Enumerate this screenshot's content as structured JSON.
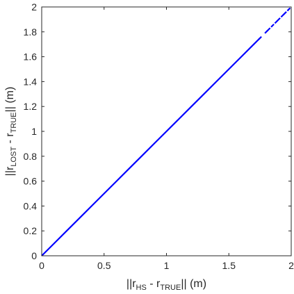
{
  "chart_data": {
    "type": "scatter",
    "xlabel": {
      "pre": "||r",
      "sub1": "HS",
      "mid": " - r",
      "sub2": "TRUE",
      "post": "|| (m)"
    },
    "ylabel": {
      "pre": "||r",
      "sub1": "LOST",
      "mid": " - r",
      "sub2": "TRUE",
      "post": "|| (m)"
    },
    "xlim": [
      0,
      2
    ],
    "ylim": [
      0,
      2
    ],
    "xticks": [
      0,
      0.5,
      1,
      1.5,
      2
    ],
    "xtick_labels": [
      "0",
      "0.5",
      "1",
      "1.5",
      "2"
    ],
    "yticks": [
      0,
      0.2,
      0.4,
      0.6,
      0.8,
      1,
      1.2,
      1.4,
      1.6,
      1.8,
      2
    ],
    "ytick_labels": [
      "0",
      "0.2",
      "0.4",
      "0.6",
      "0.8",
      "1",
      "1.2",
      "1.4",
      "1.6",
      "1.8",
      "2"
    ],
    "grid": false,
    "series": [
      {
        "color": "#0000ff",
        "x": [
          0,
          0.1,
          0.2,
          0.3,
          0.4,
          0.5,
          0.6,
          0.7,
          0.8,
          0.9,
          1.0,
          1.1,
          1.2,
          1.3,
          1.4,
          1.5,
          1.6,
          1.7,
          1.75,
          1.8,
          1.82,
          1.85,
          1.88,
          1.9,
          1.93,
          1.95,
          1.98
        ],
        "y": [
          0,
          0.1,
          0.2,
          0.3,
          0.4,
          0.5,
          0.6,
          0.7,
          0.8,
          0.9,
          1.0,
          1.1,
          1.2,
          1.3,
          1.4,
          1.5,
          1.6,
          1.7,
          1.75,
          1.8,
          1.82,
          1.85,
          1.88,
          1.9,
          1.93,
          1.95,
          1.98
        ]
      }
    ]
  }
}
